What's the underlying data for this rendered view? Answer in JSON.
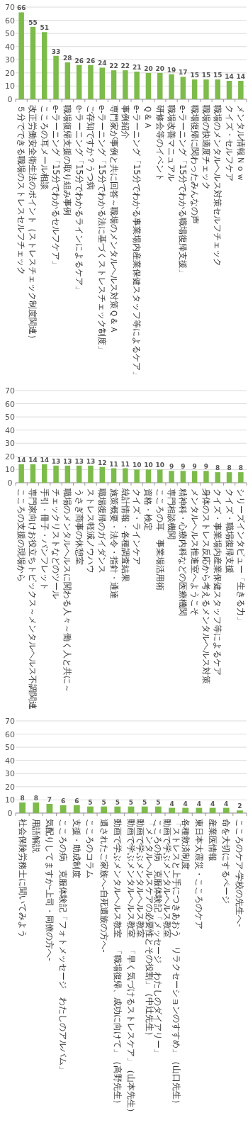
{
  "chart_data": [
    {
      "type": "bar",
      "color": "#7dbb4b",
      "ylim": [
        0,
        70
      ],
      "yticks": [
        0,
        10,
        20,
        30,
        40,
        50,
        60,
        70
      ],
      "grid": "y",
      "data_labels": true,
      "categories": [
        "５分でできる職場のストレスセルフチェック",
        "改正労働安全衛生法のポイント（ストレスチェック制度関連）",
        "こころの耳メール相談",
        "e-ラーニング「15分でわかるセルフケア」",
        "職場復帰支援の取り組み事例",
        "e-ラーニング「15分でわかるラインによるケア」",
        "ご存知ですか？うつ病",
        "e-ラーニング「15分でわかる法に基づくストレスチェック制度」",
        "専門家が事例と共に回答～職場のメンタルヘルス対策Ｑ＆Ａ",
        "事例紹介",
        "e-ラーニング「15分でわかる事業場内産業保健スタッフ等によるケア」",
        "Ｑ＆Ａ",
        "研修会等のイベント",
        "職場改善マニュアル",
        "e-ラーニング「15分でわかる職場復帰支援」",
        "職場復帰に関わったみんなの声",
        "職場の快適度チェック",
        "職場のメンタルヘルス対策セルフチェック",
        "クイズ・セルフケア",
        "メンタル情報Ｎｏｗ"
      ],
      "values": [
        66,
        55,
        51,
        33,
        28,
        26,
        26,
        24,
        22,
        22,
        21,
        20,
        20,
        19,
        17,
        15,
        15,
        15,
        14,
        14
      ]
    },
    {
      "type": "bar",
      "color": "#7dbb4b",
      "ylim": [
        0,
        70
      ],
      "yticks": [
        0,
        10,
        20,
        30,
        40,
        50,
        60,
        70
      ],
      "grid": "y",
      "data_labels": true,
      "categories": [
        "こころの支援の現場から",
        "専門家向けお役立ちトピックス～メンタルヘルス不調関連",
        "手引・冊子・パンフレット",
        "チェックリストなどのツール",
        "職場のメンタルヘルスに関わる人々～働く人と共に～",
        "うさぎ商事の休憩室",
        "ストレス軽減ノウハウ",
        "職場復帰のガイダンス",
        "施策概要・法令・指針・通達",
        "統計情報・各種調査結果",
        "クイズ・ラインケア",
        "資格・検定",
        "こころの耳　事業場活用術",
        "専門相談機関",
        "精神科・心療内科などの医療機関",
        "メンタルヘルス推進室へようこそ",
        "身体のストレス反応から考えるメンタルヘルス対策",
        "クイズ・事業場内産業保健スタッフ等によるケア",
        "クイズ・職場復帰支援",
        "シリーズインタビュー「生きる力」"
      ],
      "values": [
        14,
        14,
        14,
        13,
        13,
        13,
        13,
        12,
        11,
        11,
        10,
        10,
        10,
        9,
        9,
        9,
        9,
        8,
        8,
        8
      ]
    },
    {
      "type": "bar",
      "color": "#7dbb4b",
      "ylim": [
        0,
        70
      ],
      "yticks": [
        0,
        10,
        20,
        30,
        40,
        50,
        60,
        70
      ],
      "grid": "y",
      "data_labels": true,
      "categories": [
        "社会保険労務士に聞いてみよう",
        "用語解説",
        "気配りしてますか-上司・同僚の方へ-",
        "こころの病　克服体験記「フォトメッセージ　わたしのアルバム」",
        "支援・助成制度",
        "こころのコラム",
        "遺されたご家族へ-自死遺族の方へ-",
        "動画で学ぶメンタルヘルス教室　「職場復帰、成功に向けて」（高野先生）",
        "動画で学ぶメンタルヘルス教室　「早く気づけるストレスケア」（山本先生）",
        "動画で学ぶメンタルヘルス教室「メンタルヘルスケアの必要性とその役割」（中辻先生）",
        "こころの病　克服体験記「メッセージ　わたしのダイアリー」",
        "動画で学ぶメンタルヘルス教室「ストレスと上手につきあおう　リラクセーションのすすめ」（山口先生）",
        "各種救済制度",
        "東日本大震災・こころのケア",
        "産業医情報",
        "命を大切にするページ",
        "こころのケア-学校の先生へ-"
      ],
      "values": [
        8,
        8,
        7,
        6,
        6,
        5,
        5,
        5,
        5,
        5,
        5,
        4,
        4,
        4,
        4,
        4,
        2
      ]
    }
  ]
}
